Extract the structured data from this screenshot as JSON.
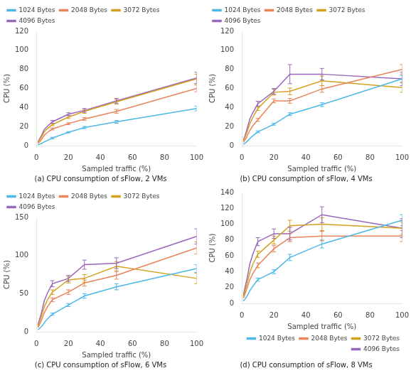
{
  "chart_data": [
    {
      "type": "line",
      "title": "(a) CPU consumption of sFlow, 2 VMs",
      "xlabel": "Sampled traffic (%)",
      "ylabel": "CPU (%)",
      "x": [
        1,
        2,
        3,
        4,
        5,
        7,
        10,
        20,
        30,
        50,
        100
      ],
      "xlim": [
        0,
        100
      ],
      "xticks": [
        0,
        20,
        40,
        60,
        80,
        100
      ],
      "ylim": [
        0,
        120
      ],
      "yticks": [
        0,
        20,
        40,
        60,
        80,
        100,
        120
      ],
      "grid": false,
      "legend": "upper left",
      "series": [
        {
          "name": "1024 Bytes",
          "color": "#4db8e8",
          "values": [
            1.0,
            1.5,
            2.2,
            3.0,
            4.0,
            5.5,
            8.0,
            14.0,
            19.0,
            25.0,
            39.0
          ],
          "errors": [
            null,
            null,
            null,
            null,
            null,
            null,
            0.8,
            0.7,
            1.2,
            1.5,
            2.5
          ]
        },
        {
          "name": "2048 Bytes",
          "color": "#e8855a",
          "values": [
            2.5,
            4.0,
            6.0,
            8.5,
            11.0,
            14.0,
            17.5,
            23.0,
            28.0,
            36.0,
            60.0
          ],
          "errors": [
            null,
            null,
            null,
            null,
            null,
            null,
            1.0,
            1.0,
            1.5,
            2.0,
            3.5
          ]
        },
        {
          "name": "3072 Bytes",
          "color": "#d4a020",
          "values": [
            3.5,
            6.0,
            8.5,
            11.5,
            14.5,
            18.0,
            22.0,
            30.0,
            36.0,
            46.0,
            70.0
          ],
          "errors": [
            null,
            null,
            null,
            null,
            null,
            null,
            1.0,
            1.5,
            2.0,
            2.5,
            5.0
          ]
        },
        {
          "name": "4096 Bytes",
          "color": "#9966bb",
          "values": [
            4.0,
            7.0,
            10.0,
            13.5,
            17.0,
            20.5,
            25.0,
            33.0,
            37.0,
            47.0,
            71.0
          ],
          "errors": [
            null,
            null,
            null,
            null,
            null,
            null,
            1.5,
            1.5,
            2.0,
            2.5,
            6.0
          ]
        }
      ]
    },
    {
      "type": "line",
      "title": "(b) CPU consumption of sFlow, 4 VMs",
      "xlabel": "Sampled traffic (%)",
      "ylabel": "CPU (%)",
      "x": [
        1,
        2,
        3,
        4,
        5,
        7,
        10,
        20,
        30,
        50,
        100
      ],
      "xlim": [
        0,
        100
      ],
      "xticks": [
        0,
        20,
        40,
        60,
        80,
        100
      ],
      "ylim": [
        0,
        120
      ],
      "yticks": [
        0,
        20,
        40,
        60,
        80,
        100,
        120
      ],
      "grid": false,
      "legend": "upper left",
      "series": [
        {
          "name": "1024 Bytes",
          "color": "#4db8e8",
          "values": [
            1.5,
            2.5,
            4.0,
            5.5,
            7.5,
            10.5,
            14.5,
            22.5,
            33.0,
            43.0,
            70.0
          ],
          "errors": [
            null,
            null,
            null,
            null,
            null,
            null,
            1.0,
            1.0,
            1.5,
            2.0,
            3.5
          ]
        },
        {
          "name": "2048 Bytes",
          "color": "#e8855a",
          "values": [
            3.5,
            6.0,
            9.0,
            12.5,
            16.0,
            21.0,
            27.0,
            47.0,
            47.0,
            59.5,
            80.0
          ],
          "errors": [
            null,
            null,
            null,
            null,
            null,
            null,
            1.5,
            2.0,
            2.5,
            3.5,
            5.0
          ]
        },
        {
          "name": "3072 Bytes",
          "color": "#d4a020",
          "values": [
            5.0,
            9.0,
            13.0,
            18.0,
            23.0,
            30.0,
            39.0,
            56.0,
            57.0,
            68.0,
            61.0
          ],
          "errors": [
            null,
            null,
            null,
            null,
            null,
            null,
            2.0,
            3.0,
            3.5,
            5.0,
            5.0
          ]
        },
        {
          "name": "4096 Bytes",
          "color": "#9966bb",
          "values": [
            6.0,
            10.5,
            16.0,
            22.0,
            28.0,
            35.0,
            44.0,
            57.0,
            75.0,
            75.0,
            70.0
          ],
          "errors": [
            null,
            null,
            null,
            null,
            null,
            null,
            2.5,
            3.0,
            10.0,
            6.0,
            7.0
          ]
        }
      ]
    },
    {
      "type": "line",
      "title": "(c) CPU consumption of sFlow, 6 VMs",
      "xlabel": "Sampled traffic (%)",
      "ylabel": "CPU (%)",
      "x": [
        1,
        2,
        3,
        4,
        5,
        7,
        10,
        20,
        30,
        50,
        100
      ],
      "xlim": [
        0,
        100
      ],
      "xticks": [
        0,
        20,
        40,
        60,
        80,
        100
      ],
      "ylim": [
        0,
        150
      ],
      "yticks": [
        0,
        50,
        100,
        150
      ],
      "grid": false,
      "legend": "upper left",
      "series": [
        {
          "name": "1024 Bytes",
          "color": "#4db8e8",
          "values": [
            2.5,
            4.5,
            6.5,
            9.0,
            12.0,
            17.0,
            23.0,
            35.0,
            47.0,
            59.0,
            83.0
          ],
          "errors": [
            null,
            null,
            null,
            null,
            null,
            null,
            1.5,
            2.0,
            3.0,
            4.0,
            5.0
          ]
        },
        {
          "name": "2048 Bytes",
          "color": "#e8855a",
          "values": [
            5.5,
            9.5,
            14.0,
            19.5,
            25.0,
            33.0,
            42.0,
            52.0,
            64.0,
            74.0,
            110.0
          ],
          "errors": [
            null,
            null,
            null,
            null,
            null,
            null,
            2.5,
            3.0,
            4.0,
            5.0,
            8.0
          ]
        },
        {
          "name": "3072 Bytes",
          "color": "#d4a020",
          "values": [
            7.5,
            13.0,
            19.0,
            26.0,
            33.0,
            42.0,
            52.0,
            68.0,
            70.0,
            86.0,
            70.0
          ],
          "errors": [
            null,
            null,
            null,
            null,
            null,
            null,
            3.0,
            4.0,
            5.0,
            6.0,
            7.0
          ]
        },
        {
          "name": "4096 Bytes",
          "color": "#9966bb",
          "values": [
            9.0,
            16.0,
            23.0,
            32.0,
            41.0,
            51.0,
            63.0,
            70.0,
            88.0,
            90.0,
            125.0
          ],
          "errors": [
            null,
            null,
            null,
            null,
            null,
            null,
            4.0,
            4.0,
            6.0,
            7.0,
            10.0
          ]
        }
      ]
    },
    {
      "type": "line",
      "title": "(d) CPU consumption of sFlow, 8 VMs",
      "xlabel": "Sampled traffic (%)",
      "ylabel": "CPU (%)",
      "x": [
        1,
        2,
        3,
        4,
        5,
        7,
        10,
        20,
        30,
        50,
        100
      ],
      "xlim": [
        0,
        100
      ],
      "xticks": [
        0,
        20,
        40,
        60,
        80,
        100
      ],
      "ylim": [
        0,
        140
      ],
      "yticks": [
        0,
        20,
        40,
        60,
        80,
        100,
        120,
        140
      ],
      "grid": false,
      "legend": "lower right",
      "series": [
        {
          "name": "1024 Bytes",
          "color": "#4db8e8",
          "values": [
            3.0,
            5.5,
            8.5,
            12.0,
            16.0,
            22.0,
            30.0,
            40.0,
            58.0,
            75.0,
            105.0
          ],
          "errors": [
            null,
            null,
            null,
            null,
            null,
            null,
            2.0,
            2.5,
            4.0,
            5.0,
            7.0
          ]
        },
        {
          "name": "2048 Bytes",
          "color": "#e8855a",
          "values": [
            6.5,
            12.0,
            17.5,
            24.0,
            30.0,
            38.0,
            48.0,
            69.0,
            83.0,
            85.0,
            85.0
          ],
          "errors": [
            null,
            null,
            null,
            null,
            null,
            null,
            3.0,
            4.0,
            5.0,
            6.0,
            7.0
          ]
        },
        {
          "name": "3072 Bytes",
          "color": "#d4a020",
          "values": [
            9.0,
            16.0,
            23.0,
            31.0,
            39.0,
            50.0,
            62.0,
            80.0,
            98.0,
            100.0,
            95.0
          ],
          "errors": [
            null,
            null,
            null,
            null,
            null,
            null,
            4.0,
            5.0,
            7.0,
            8.0,
            8.0
          ]
        },
        {
          "name": "4096 Bytes",
          "color": "#9966bb",
          "values": [
            11.0,
            20.0,
            29.0,
            39.0,
            50.0,
            63.0,
            78.0,
            88.0,
            88.0,
            112.0,
            95.0
          ],
          "errors": [
            null,
            null,
            null,
            null,
            null,
            null,
            5.0,
            6.0,
            8.0,
            10.0,
            12.0
          ]
        }
      ]
    }
  ]
}
